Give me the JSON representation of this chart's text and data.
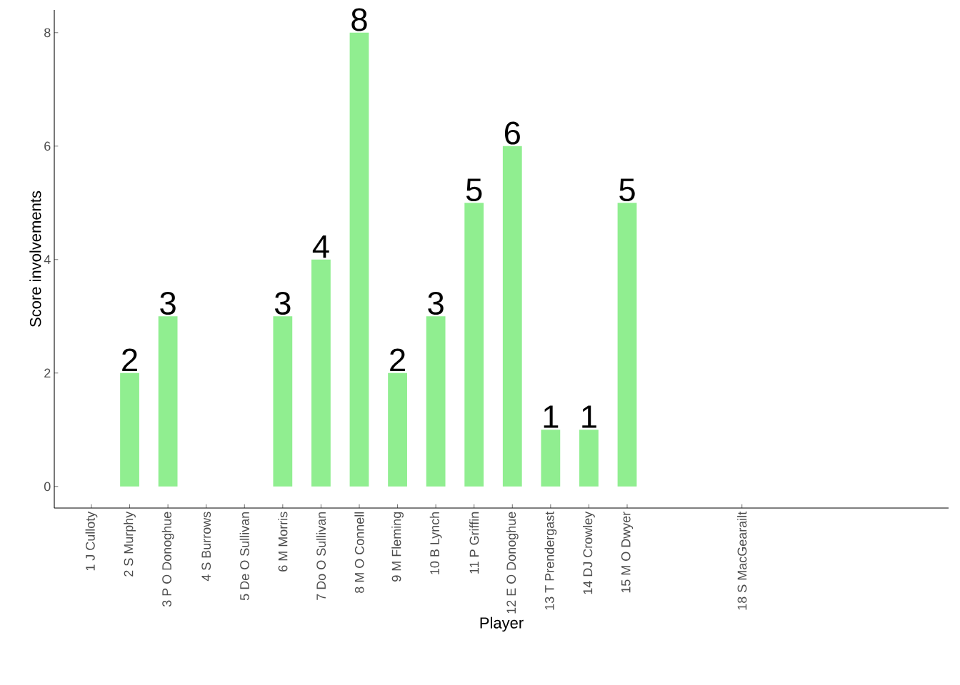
{
  "chart_data": {
    "type": "bar",
    "xlabel": "Player",
    "ylabel": "Score involvements",
    "categories": [
      "1 J Culloty",
      "2 S Murphy",
      "3 P O Donoghue",
      "4 S Burrows",
      "5 De O Sullivan",
      "6 M Morris",
      "7 Do O Sullivan",
      "8 M O Connell",
      "9 M Fleming",
      "10 B Lynch",
      "11 P Griffin",
      "12 E O Donoghue",
      "13 T Prendergast",
      "14 DJ Crowley",
      "15 M O Dwyer",
      null,
      null,
      "18 S MacGearailt"
    ],
    "values": [
      null,
      2,
      3,
      null,
      null,
      3,
      4,
      8,
      2,
      3,
      5,
      6,
      1,
      1,
      5,
      null,
      null,
      null
    ],
    "value_labels": [
      null,
      "2",
      "3",
      null,
      null,
      "3",
      "4",
      "8",
      "2",
      "3",
      "5",
      "6",
      "1",
      "1",
      "5",
      null,
      null,
      null
    ],
    "color": "#90ee90",
    "ylim": [
      -0.38,
      8.4
    ],
    "yticks": [
      0,
      2,
      4,
      6,
      8
    ]
  }
}
